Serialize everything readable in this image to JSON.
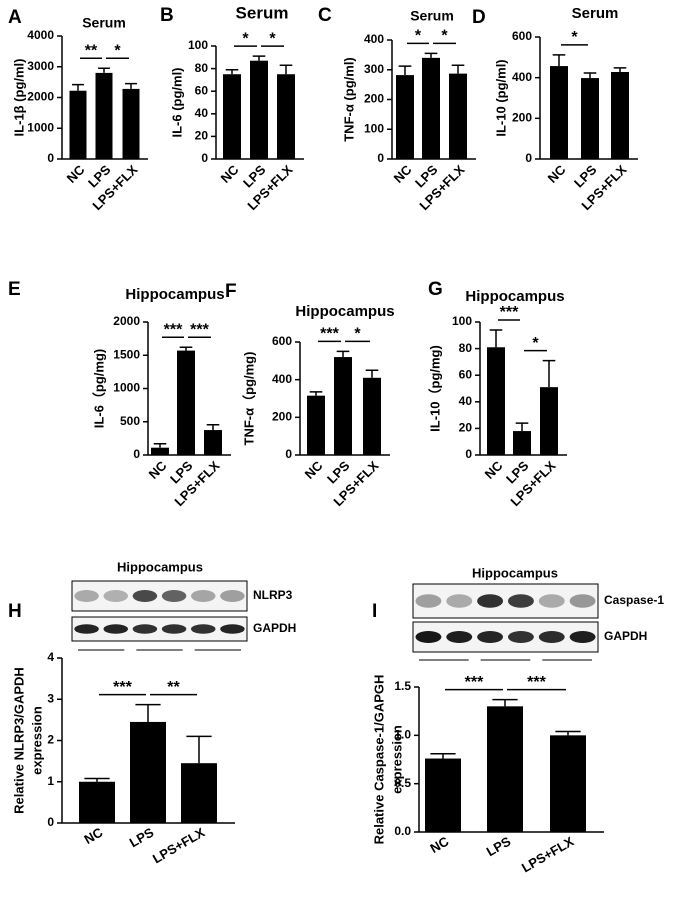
{
  "chart_data": [
    {
      "type": "bar",
      "panel": "A",
      "title": "Serum",
      "ylabel": [
        "IL-1β (pg/ml)"
      ],
      "categories": [
        "NC",
        "LPS",
        "LPS+FLX"
      ],
      "values": [
        2220,
        2800,
        2280
      ],
      "errors": [
        200,
        150,
        170
      ],
      "color": "#000000",
      "ylim": [
        0,
        4000
      ],
      "yticks": [
        0,
        1000,
        2000,
        3000,
        4000
      ],
      "comparisons": [
        {
          "between": [
            0,
            1
          ],
          "label": "**"
        },
        {
          "between": [
            1,
            2
          ],
          "label": "*"
        }
      ]
    },
    {
      "type": "bar",
      "panel": "B",
      "title": "Serum",
      "ylabel": [
        "IL-6 (pg/ml)"
      ],
      "categories": [
        "NC",
        "LPS",
        "LPS+FLX"
      ],
      "values": [
        75,
        87,
        75
      ],
      "errors": [
        4,
        4,
        8
      ],
      "color": "#000000",
      "ylim": [
        0,
        100
      ],
      "yticks": [
        0,
        20,
        40,
        60,
        80,
        100
      ],
      "comparisons": [
        {
          "between": [
            0,
            1
          ],
          "label": "*"
        },
        {
          "between": [
            1,
            2
          ],
          "label": "*"
        }
      ]
    },
    {
      "type": "bar",
      "panel": "C",
      "title": "Serum",
      "ylabel": [
        "TNF-α (pg/ml)"
      ],
      "categories": [
        "NC",
        "LPS",
        "LPS+FLX"
      ],
      "values": [
        282,
        340,
        287
      ],
      "errors": [
        30,
        15,
        28
      ],
      "color": "#000000",
      "ylim": [
        0,
        400
      ],
      "yticks": [
        0,
        100,
        200,
        300,
        400
      ],
      "comparisons": [
        {
          "between": [
            0,
            1
          ],
          "label": "*"
        },
        {
          "between": [
            1,
            2
          ],
          "label": "*"
        }
      ]
    },
    {
      "type": "bar",
      "panel": "D",
      "title": "Serum",
      "ylabel": [
        "IL-10 (pg/ml)"
      ],
      "categories": [
        "NC",
        "LPS",
        "LPS+FLX"
      ],
      "values": [
        457,
        398,
        428
      ],
      "errors": [
        55,
        25,
        20
      ],
      "color": "#000000",
      "ylim": [
        0,
        600
      ],
      "yticks": [
        0,
        200,
        400,
        600
      ],
      "comparisons": [
        {
          "between": [
            0,
            1
          ],
          "label": "*"
        }
      ]
    },
    {
      "type": "bar",
      "panel": "E",
      "title": "Hippocampus",
      "ylabel": [
        "IL-6（pg/mg)"
      ],
      "categories": [
        "NC",
        "LPS",
        "LPS+FLX"
      ],
      "values": [
        110,
        1570,
        375
      ],
      "errors": [
        60,
        50,
        80
      ],
      "color": "#000000",
      "ylim": [
        0,
        2000
      ],
      "yticks": [
        0,
        500,
        1000,
        1500,
        2000
      ],
      "comparisons": [
        {
          "between": [
            0,
            1
          ],
          "label": "***"
        },
        {
          "between": [
            1,
            2
          ],
          "label": "***"
        }
      ]
    },
    {
      "type": "bar",
      "panel": "F",
      "title": "Hippocampus",
      "ylabel": [
        "TNF-α（pg/mg)"
      ],
      "categories": [
        "NC",
        "LPS",
        "LPS+FLX"
      ],
      "values": [
        315,
        520,
        410
      ],
      "errors": [
        20,
        30,
        40
      ],
      "color": "#000000",
      "ylim": [
        0,
        600
      ],
      "yticks": [
        0,
        200,
        400,
        600
      ],
      "comparisons": [
        {
          "between": [
            0,
            1
          ],
          "label": "***"
        },
        {
          "between": [
            1,
            2
          ],
          "label": "*"
        }
      ]
    },
    {
      "type": "bar",
      "panel": "G",
      "title": "Hippocampus",
      "ylabel": [
        "IL-10（pg/mg)"
      ],
      "categories": [
        "NC",
        "LPS",
        "LPS+FLX"
      ],
      "values": [
        81,
        18,
        51
      ],
      "errors": [
        13,
        6,
        20
      ],
      "color": "#000000",
      "ylim": [
        0,
        100
      ],
      "yticks": [
        0,
        20,
        40,
        60,
        80,
        100
      ],
      "comparisons": [
        {
          "between": [
            0,
            1
          ],
          "label": "***"
        },
        {
          "between": [
            1,
            2
          ],
          "label": "*"
        }
      ]
    },
    {
      "type": "bar",
      "panel": "H",
      "title": "Hippocampus",
      "blot_labels": [
        "NLRP3",
        "GAPDH"
      ],
      "ylabel": [
        "Relative NLRP3/GAPDH",
        "expression"
      ],
      "categories": [
        "NC",
        "LPS",
        "LPS+FLX"
      ],
      "values": [
        1.0,
        2.45,
        1.45
      ],
      "errors": [
        0.08,
        0.42,
        0.65
      ],
      "color": "#000000",
      "ylim": [
        0,
        4
      ],
      "yticks": [
        0,
        1,
        2,
        3,
        4
      ],
      "comparisons": [
        {
          "between": [
            0,
            1
          ],
          "label": "***"
        },
        {
          "between": [
            1,
            2
          ],
          "label": "**"
        }
      ]
    },
    {
      "type": "bar",
      "panel": "I",
      "title": "Hippocampus",
      "blot_labels": [
        "Caspase-1",
        "GAPDH"
      ],
      "ylabel": [
        "Relative Caspase-1/GAPGH",
        "expression"
      ],
      "categories": [
        "NC",
        "LPS",
        "LPS+FLX"
      ],
      "values": [
        0.76,
        1.3,
        1.0
      ],
      "errors": [
        0.05,
        0.07,
        0.04
      ],
      "color": "#000000",
      "ylim": [
        0,
        1.5
      ],
      "yticks": [
        {
          "value": 0,
          "label": "0.0"
        },
        0.5,
        {
          "value": 1,
          "label": "1.0"
        },
        1.5
      ],
      "comparisons": [
        {
          "between": [
            0,
            1
          ],
          "label": "***"
        },
        {
          "between": [
            1,
            2
          ],
          "label": "***"
        }
      ]
    }
  ]
}
